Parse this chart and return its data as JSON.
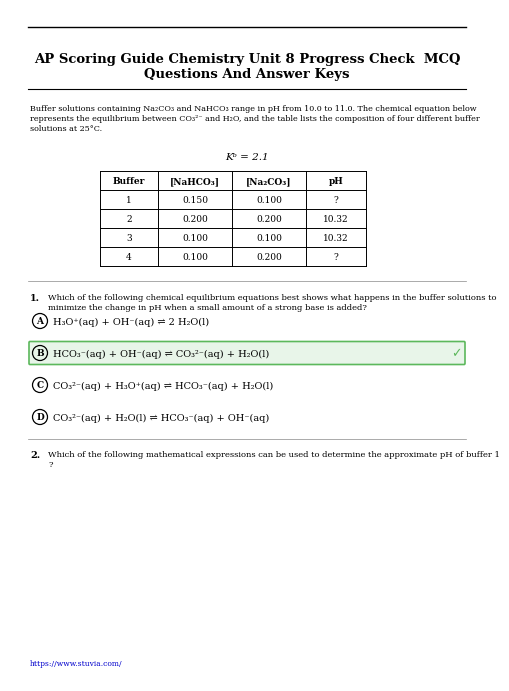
{
  "title_line1": "AP Scoring Guide Chemistry Unit 8 Progress Check  MCQ",
  "title_line2": "Questions And Answer Keys",
  "paragraph_line1": "Buffer solutions containing Na₂CO₃ and NaHCO₃ range in pH from 10.0 to 11.0. The chemical equation below",
  "paragraph_line2": "represents the equilibrium between CO₃²⁻ and H₂O, and the table lists the composition of four different buffer",
  "paragraph_line3": "solutions at 25°C.",
  "ka_text": "Kᵇ = 2.1",
  "table_headers": [
    "Buffer",
    "[NaHCO₃]",
    "[Na₂CO₃]",
    "pH"
  ],
  "table_data": [
    [
      "1",
      "0.150",
      "0.100",
      "?"
    ],
    [
      "2",
      "0.200",
      "0.200",
      "10.32"
    ],
    [
      "3",
      "0.100",
      "0.100",
      "10.32"
    ],
    [
      "4",
      "0.100",
      "0.200",
      "?"
    ]
  ],
  "q1_number": "1.",
  "q1_text_line1": "Which of the following chemical equilibrium equations best shows what happens in the buffer solutions to",
  "q1_text_line2": "minimize the change in pH when a small amount of a strong base is added?",
  "options": [
    {
      "label": "A",
      "text": "H₃O⁺(aq) + OH⁻(aq) ⇌ 2 H₂O(l)",
      "correct": false
    },
    {
      "label": "B",
      "text": "HCO₃⁻(aq) + OH⁻(aq) ⇌ CO₃²⁻(aq) + H₂O(l)",
      "correct": true
    },
    {
      "label": "C",
      "text": "CO₃²⁻(aq) + H₃O⁺(aq) ⇌ HCO₃⁻(aq) + H₂O(l)",
      "correct": false
    },
    {
      "label": "D",
      "text": "CO₃²⁻(aq) + H₂O(l) ⇌ HCO₃⁻(aq) + OH⁻(aq)",
      "correct": false
    }
  ],
  "q2_number": "2.",
  "q2_text_line1": "Which of the following mathematical expressions can be used to determine the approximate pH of buffer 1",
  "q2_text_line2": "?",
  "footer": "https://www.stuvia.com/",
  "bg_color": "#ffffff",
  "text_color": "#000000",
  "correct_bg": "#e8f5e9",
  "correct_border": "#5cb85c",
  "line_color": "#888888"
}
